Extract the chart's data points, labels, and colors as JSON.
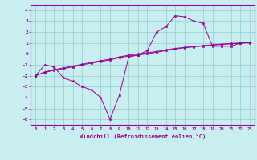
{
  "xlabel": "Windchill (Refroidissement éolien,°C)",
  "x_hours": [
    0,
    1,
    2,
    3,
    4,
    5,
    6,
    7,
    8,
    9,
    10,
    11,
    12,
    13,
    14,
    15,
    16,
    17,
    18,
    19,
    20,
    21,
    22,
    23
  ],
  "y_main": [
    -2.0,
    -1.0,
    -1.2,
    -2.2,
    -2.5,
    -3.0,
    -3.3,
    -4.0,
    -6.0,
    -3.8,
    -0.3,
    -0.1,
    0.3,
    2.0,
    2.5,
    3.5,
    3.4,
    3.0,
    2.8,
    0.7,
    0.7,
    0.7,
    1.0,
    1.0
  ],
  "y_diag1": [
    -2.0,
    -1.7,
    -1.5,
    -1.35,
    -1.2,
    -1.0,
    -0.85,
    -0.7,
    -0.55,
    -0.35,
    -0.2,
    -0.1,
    0.0,
    0.15,
    0.3,
    0.45,
    0.55,
    0.65,
    0.72,
    0.8,
    0.87,
    0.92,
    0.97,
    1.05
  ],
  "y_diag2": [
    -2.0,
    -1.65,
    -1.45,
    -1.28,
    -1.12,
    -0.95,
    -0.78,
    -0.62,
    -0.48,
    -0.28,
    -0.12,
    0.0,
    0.1,
    0.22,
    0.36,
    0.5,
    0.6,
    0.68,
    0.76,
    0.83,
    0.9,
    0.95,
    1.0,
    1.08
  ],
  "line_color": "#990099",
  "bg_color": "#c8eef0",
  "grid_color": "#90cdd0",
  "ylim": [
    -6.5,
    4.5
  ],
  "xlim": [
    -0.5,
    23.5
  ],
  "yticks": [
    -6,
    -5,
    -4,
    -3,
    -2,
    -1,
    0,
    1,
    2,
    3,
    4
  ]
}
